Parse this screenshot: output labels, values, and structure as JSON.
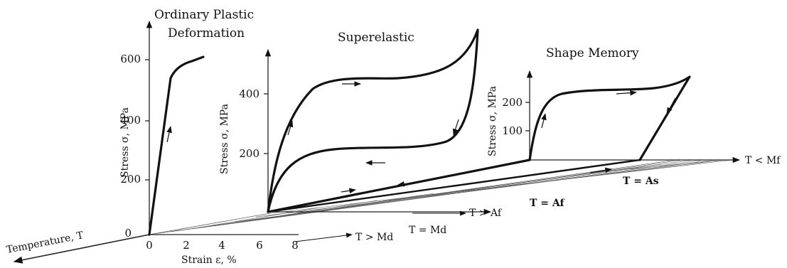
{
  "titles": {
    "ordinary_line1": "Ordinary Plastic",
    "ordinary_line2": "Deformation",
    "superelastic": "Superelastic",
    "shape_memory": "Shape Memory"
  },
  "axes": {
    "stress_label": "Stress σ, MPa",
    "strain_label": "Strain ε, %",
    "temperature_label": "Temperature, T"
  },
  "ticks": {
    "strain": [
      "0",
      "2",
      "4",
      "6",
      "8"
    ],
    "stress_ordinary": [
      "0",
      "200",
      "400",
      "600"
    ],
    "stress_superelastic": [
      "200",
      "400"
    ],
    "stress_shape_memory": [
      "100",
      "200"
    ]
  },
  "temperature_conditions": {
    "t_gt_md": "T > Md",
    "t_eq_md": "T = Md",
    "t_gt_af": "T > Af",
    "t_eq_af": "T = Af",
    "t_eq_as": "T = As",
    "t_lt_mf": "T < Mf"
  },
  "colors": {
    "ink": "#111111",
    "background": "#ffffff"
  }
}
